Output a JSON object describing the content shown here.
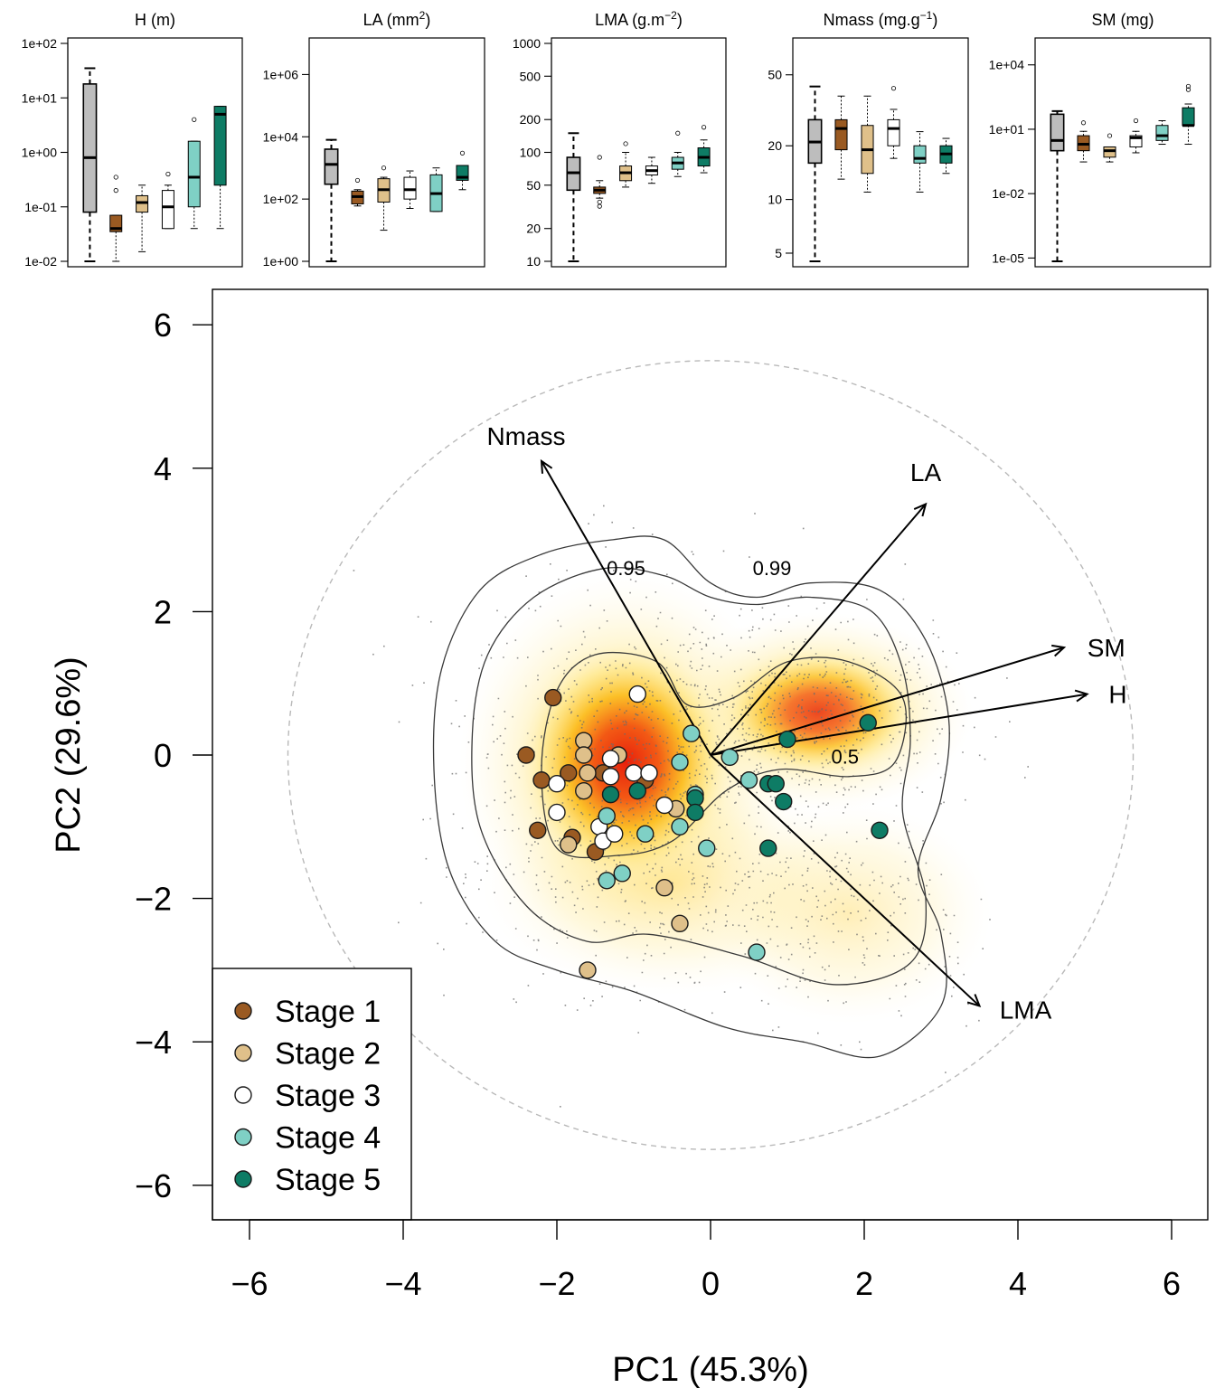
{
  "chart_data": [
    {
      "type": "box",
      "title": "H (m)",
      "title_main": "H",
      "title_unit": "(m)",
      "scale": "log10",
      "tick_labels": [
        "1e-02",
        "1e-01",
        "1e+00",
        "1e+01",
        "1e+02"
      ],
      "ticks": [
        0.01,
        0.1,
        1,
        10,
        100
      ],
      "ylim": [
        0.01,
        100
      ],
      "boxes": [
        {
          "min": 0.01,
          "q1": 0.08,
          "median": 0.8,
          "q3": 18,
          "max": 35
        },
        {
          "min": 0.01,
          "q1": 0.035,
          "median": 0.04,
          "q3": 0.07,
          "max": 0.07,
          "outliers": [
            0.2,
            0.35
          ]
        },
        {
          "min": 0.015,
          "q1": 0.08,
          "median": 0.12,
          "q3": 0.16,
          "max": 0.25
        },
        {
          "min": 0.04,
          "q1": 0.04,
          "median": 0.1,
          "q3": 0.2,
          "max": 0.25,
          "outliers": [
            0.4
          ]
        },
        {
          "min": 0.04,
          "q1": 0.1,
          "median": 0.35,
          "q3": 1.6,
          "max": 1.6,
          "outliers": [
            4
          ]
        },
        {
          "min": 0.04,
          "q1": 0.25,
          "median": 5,
          "q3": 7,
          "max": 7
        }
      ]
    },
    {
      "type": "box",
      "title": "LA (mm2)",
      "title_main": "LA",
      "title_unit": "(mm",
      "title_sup": "2",
      "title_end": ")",
      "scale": "log10",
      "tick_labels": [
        "1e+00",
        "1e+02",
        "1e+04",
        "1e+06"
      ],
      "ticks": [
        1,
        100,
        10000,
        1000000
      ],
      "ylim": [
        1,
        10000000
      ],
      "boxes": [
        {
          "min": 1,
          "q1": 300,
          "median": 1300,
          "q3": 4000,
          "max": 8000
        },
        {
          "min": 60,
          "q1": 70,
          "median": 120,
          "q3": 180,
          "max": 200,
          "outliers": [
            400
          ]
        },
        {
          "min": 10,
          "q1": 80,
          "median": 200,
          "q3": 450,
          "max": 500,
          "outliers": [
            1000
          ]
        },
        {
          "min": 50,
          "q1": 100,
          "median": 200,
          "q3": 500,
          "max": 800
        },
        {
          "min": 40,
          "q1": 40,
          "median": 150,
          "q3": 600,
          "max": 1000
        },
        {
          "min": 200,
          "q1": 400,
          "median": 500,
          "q3": 1200,
          "max": 1200,
          "outliers": [
            3000
          ]
        }
      ]
    },
    {
      "type": "box",
      "title": "LMA (g.m-2)",
      "title_main": "LMA",
      "title_unit": "(g.m",
      "title_sup": "−2",
      "title_end": ")",
      "scale": "log10",
      "tick_labels": [
        "10",
        "20",
        "50",
        "100",
        "200",
        "500",
        "1000"
      ],
      "ticks": [
        10,
        20,
        50,
        100,
        200,
        500,
        1000
      ],
      "ylim": [
        10,
        1000
      ],
      "boxes": [
        {
          "min": 10,
          "q1": 45,
          "median": 65,
          "q3": 90,
          "max": 150
        },
        {
          "min": 38,
          "q1": 42,
          "median": 45,
          "q3": 48,
          "max": 55,
          "outliers": [
            90,
            35,
            32
          ]
        },
        {
          "min": 48,
          "q1": 55,
          "median": 65,
          "q3": 75,
          "max": 100,
          "outliers": [
            120
          ]
        },
        {
          "min": 52,
          "q1": 62,
          "median": 68,
          "q3": 75,
          "max": 90
        },
        {
          "min": 60,
          "q1": 70,
          "median": 80,
          "q3": 90,
          "max": 100,
          "outliers": [
            150
          ]
        },
        {
          "min": 65,
          "q1": 75,
          "median": 90,
          "q3": 110,
          "max": 130,
          "outliers": [
            170
          ]
        }
      ]
    },
    {
      "type": "box",
      "title": "Nmass (mg.g-1)",
      "title_main": "Nmass",
      "title_unit": "(mg.g",
      "title_sup": "−1",
      "title_end": ")",
      "scale": "log10",
      "tick_labels": [
        "5",
        "10",
        "20",
        "50"
      ],
      "ticks": [
        5,
        10,
        20,
        50
      ],
      "ylim": [
        4.5,
        75
      ],
      "boxes": [
        {
          "min": 4.5,
          "q1": 16,
          "median": 21,
          "q3": 28,
          "max": 43
        },
        {
          "min": 13,
          "q1": 19,
          "median": 25,
          "q3": 28,
          "max": 38
        },
        {
          "min": 11,
          "q1": 14,
          "median": 19,
          "q3": 26,
          "max": 38
        },
        {
          "min": 17,
          "q1": 20,
          "median": 25,
          "q3": 28,
          "max": 32,
          "outliers": [
            42
          ]
        },
        {
          "min": 11,
          "q1": 16,
          "median": 17,
          "q3": 20,
          "max": 24
        },
        {
          "min": 14,
          "q1": 16,
          "median": 18,
          "q3": 20,
          "max": 22
        }
      ]
    },
    {
      "type": "box",
      "title": "SM (mg)",
      "title_main": "SM",
      "title_unit": "(mg)",
      "scale": "log10",
      "tick_labels": [
        "1e-05",
        "1e-02",
        "1e+01",
        "1e+04"
      ],
      "ticks": [
        1e-05,
        0.01,
        10,
        10000
      ],
      "ylim": [
        7e-06,
        100000
      ],
      "boxes": [
        {
          "min": 7e-06,
          "q1": 1,
          "median": 3,
          "q3": 50,
          "max": 70
        },
        {
          "min": 0.3,
          "q1": 1,
          "median": 2,
          "q3": 5,
          "max": 8,
          "outliers": [
            20
          ]
        },
        {
          "min": 0.3,
          "q1": 0.5,
          "median": 1,
          "q3": 1.5,
          "max": 1.5,
          "outliers": [
            5
          ]
        },
        {
          "min": 0.8,
          "q1": 1.5,
          "median": 4,
          "q3": 5,
          "max": 8,
          "outliers": [
            25
          ]
        },
        {
          "min": 2,
          "q1": 3,
          "median": 5,
          "q3": 15,
          "max": 25
        },
        {
          "min": 2,
          "q1": 15,
          "median": 15,
          "q3": 100,
          "max": 150,
          "outliers": [
            700,
            1000
          ]
        }
      ]
    },
    {
      "type": "scatter",
      "xlabel": "PC1 (45.3%)",
      "ylabel": "PC2 (29.6%)",
      "xlim": [
        -6.7,
        6.3
      ],
      "ylim": [
        -6.4,
        6.5
      ],
      "xticks": [
        -6,
        -4,
        -2,
        0,
        2,
        4,
        6
      ],
      "yticks": [
        -6,
        -4,
        -2,
        0,
        2,
        4,
        6
      ],
      "xtick_labels": [
        "−6",
        "−4",
        "−2",
        "0",
        "2",
        "4",
        "6"
      ],
      "ytick_labels": [
        "−6",
        "−4",
        "−2",
        "0",
        "2",
        "4",
        "6"
      ],
      "circle_radius": 5.5,
      "contour_labels": [
        {
          "text": "0.95",
          "x": -1.1,
          "y": 2.6
        },
        {
          "text": "0.99",
          "x": 0.8,
          "y": 2.6
        },
        {
          "text": "0.5",
          "x": 1.75,
          "y": -0.03
        }
      ],
      "contours": [
        [
          [
            -2.8,
            -2.6
          ],
          [
            -3.4,
            -1.6
          ],
          [
            -3.6,
            -0.2
          ],
          [
            -3.5,
            1.2
          ],
          [
            -3.0,
            2.3
          ],
          [
            -2.2,
            2.8
          ],
          [
            -1.3,
            3.0
          ],
          [
            -0.6,
            3.0
          ],
          [
            0,
            2.4
          ],
          [
            0.6,
            2.2
          ],
          [
            1.3,
            2.4
          ],
          [
            2.2,
            2.3
          ],
          [
            2.8,
            1.6
          ],
          [
            3.1,
            0.5
          ],
          [
            3.0,
            -0.6
          ],
          [
            2.7,
            -1.6
          ],
          [
            3.0,
            -2.5
          ],
          [
            3.0,
            -3.5
          ],
          [
            2.2,
            -4.2
          ],
          [
            1.2,
            -4.0
          ],
          [
            0.2,
            -3.8
          ],
          [
            -1.0,
            -3.3
          ],
          [
            -2.0,
            -3.0
          ]
        ],
        [
          [
            -2.4,
            -2.1
          ],
          [
            -3.0,
            -1.0
          ],
          [
            -3.1,
            0.3
          ],
          [
            -2.9,
            1.4
          ],
          [
            -2.3,
            2.2
          ],
          [
            -1.4,
            2.6
          ],
          [
            -0.6,
            2.5
          ],
          [
            0,
            2.2
          ],
          [
            0.6,
            2.1
          ],
          [
            1.3,
            2.2
          ],
          [
            2.1,
            2.0
          ],
          [
            2.5,
            1.2
          ],
          [
            2.6,
            0.2
          ],
          [
            2.5,
            -0.8
          ],
          [
            2.8,
            -2.0
          ],
          [
            2.6,
            -2.9
          ],
          [
            1.6,
            -3.2
          ],
          [
            0.4,
            -2.8
          ],
          [
            -0.8,
            -2.5
          ],
          [
            -1.6,
            -2.6
          ]
        ],
        [
          [
            -2.0,
            -1.3
          ],
          [
            -2.2,
            -0.2
          ],
          [
            -2.0,
            0.9
          ],
          [
            -1.5,
            1.4
          ],
          [
            -0.7,
            1.3
          ],
          [
            -0.3,
            0.7
          ],
          [
            0.3,
            0.8
          ],
          [
            1.0,
            1.3
          ],
          [
            1.8,
            1.3
          ],
          [
            2.5,
            0.8
          ],
          [
            2.4,
            -0.1
          ],
          [
            1.8,
            -0.3
          ],
          [
            0.9,
            -0.2
          ],
          [
            0.2,
            -0.5
          ],
          [
            -0.5,
            -1.2
          ],
          [
            -1.2,
            -1.4
          ]
        ]
      ],
      "density_hotspots": [
        {
          "x": -1.1,
          "y": -0.1,
          "sx": 1.4,
          "sy": 1.7,
          "w": 1.0
        },
        {
          "x": 1.4,
          "y": 0.6,
          "sx": 1.3,
          "sy": 0.9,
          "w": 0.8
        },
        {
          "x": -0.5,
          "y": -1.8,
          "sx": 1.6,
          "sy": 1.0,
          "w": 0.35
        },
        {
          "x": 1.8,
          "y": -2.2,
          "sx": 1.2,
          "sy": 1.0,
          "w": 0.25
        }
      ],
      "loadings": [
        {
          "name": "Nmass",
          "x": -2.2,
          "y": 4.1
        },
        {
          "name": "LA",
          "x": 2.8,
          "y": 3.5
        },
        {
          "name": "SM",
          "x": 4.6,
          "y": 1.5
        },
        {
          "name": "H",
          "x": 4.9,
          "y": 0.85
        },
        {
          "name": "LMA",
          "x": 3.5,
          "y": -3.5
        }
      ],
      "loading_label_offsets": {
        "Nmass": {
          "dx": -0.2,
          "dy": 0.35
        },
        "LA": {
          "dx": 0.0,
          "dy": 0.45
        },
        "SM": {
          "dx": 0.55,
          "dy": 0.0
        },
        "H": {
          "dx": 0.4,
          "dy": 0.0
        },
        "LMA": {
          "dx": 0.6,
          "dy": -0.05
        }
      },
      "series": [
        {
          "name": "Stage 1",
          "color": "#9a5a22",
          "points": [
            [
              -2.05,
              0.8
            ],
            [
              -2.4,
              0.0
            ],
            [
              -2.2,
              -0.35
            ],
            [
              -1.85,
              -0.25
            ],
            [
              -1.4,
              -0.25
            ],
            [
              -2.25,
              -1.05
            ],
            [
              -1.8,
              -1.15
            ],
            [
              -1.5,
              -1.35
            ],
            [
              -0.85,
              -0.35
            ]
          ]
        },
        {
          "name": "Stage 2",
          "color": "#dfc08a",
          "points": [
            [
              -1.65,
              0.2
            ],
            [
              -1.65,
              0.0
            ],
            [
              -1.6,
              -0.25
            ],
            [
              -1.2,
              0.0
            ],
            [
              -1.65,
              -0.5
            ],
            [
              -1.85,
              -1.25
            ],
            [
              -0.45,
              -0.75
            ],
            [
              -0.6,
              -1.85
            ],
            [
              -0.4,
              -2.35
            ],
            [
              -1.6,
              -3.0
            ]
          ]
        },
        {
          "name": "Stage 3",
          "color": "#ffffff",
          "points": [
            [
              -0.95,
              0.85
            ],
            [
              -1.3,
              -0.05
            ],
            [
              -1.3,
              -0.3
            ],
            [
              -1.0,
              -0.25
            ],
            [
              -0.8,
              -0.25
            ],
            [
              -2.0,
              -0.4
            ],
            [
              -2.0,
              -0.8
            ],
            [
              -1.45,
              -1.0
            ],
            [
              -1.4,
              -1.2
            ],
            [
              -1.25,
              -1.1
            ],
            [
              -0.6,
              -0.7
            ]
          ]
        },
        {
          "name": "Stage 4",
          "color": "#7fd0c5",
          "points": [
            [
              -0.25,
              0.3
            ],
            [
              -0.4,
              -0.1
            ],
            [
              0.25,
              -0.03
            ],
            [
              -0.2,
              -0.55
            ],
            [
              0.5,
              -0.35
            ],
            [
              -0.4,
              -1.0
            ],
            [
              -0.85,
              -1.1
            ],
            [
              -1.35,
              -0.85
            ],
            [
              -0.05,
              -1.3
            ],
            [
              -1.15,
              -1.65
            ],
            [
              -1.35,
              -1.75
            ],
            [
              0.6,
              -2.75
            ]
          ]
        },
        {
          "name": "Stage 5",
          "color": "#0e7c65",
          "points": [
            [
              2.05,
              0.45
            ],
            [
              1.0,
              0.22
            ],
            [
              -0.95,
              -0.5
            ],
            [
              -1.3,
              -0.55
            ],
            [
              -0.2,
              -0.6
            ],
            [
              -0.2,
              -0.8
            ],
            [
              0.75,
              -0.4
            ],
            [
              0.85,
              -0.4
            ],
            [
              0.95,
              -0.65
            ],
            [
              2.2,
              -1.05
            ],
            [
              0.75,
              -1.3
            ]
          ]
        }
      ],
      "legend": [
        "Stage 1",
        "Stage 2",
        "Stage 3",
        "Stage 4",
        "Stage 5"
      ],
      "legend_position": "bottom-left"
    }
  ],
  "box_colors": [
    "#bdbdbd",
    "#9a5a22",
    "#dfc08a",
    "#ffffff",
    "#7fd0c5",
    "#0e7c65"
  ]
}
